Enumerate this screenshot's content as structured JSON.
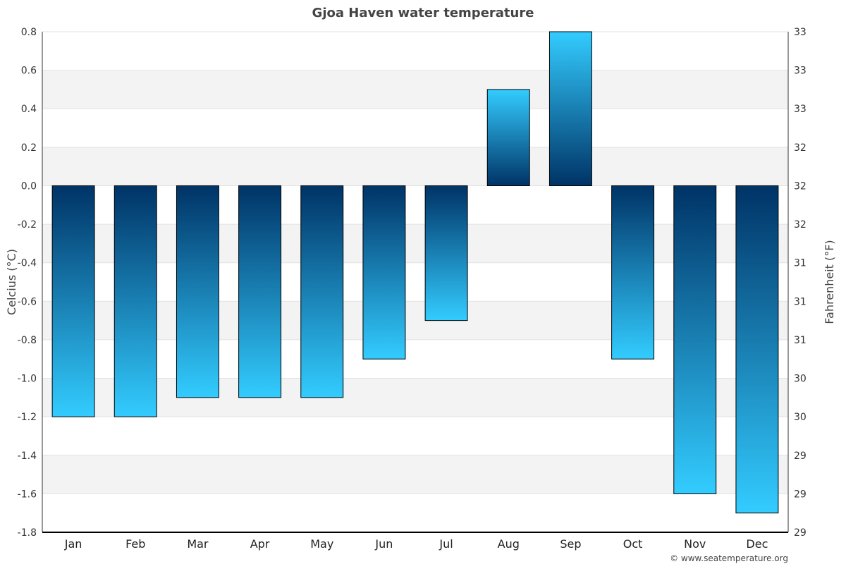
{
  "chart_data": {
    "type": "bar",
    "title": "Gjoa Haven water temperature",
    "categories": [
      "Jan",
      "Feb",
      "Mar",
      "Apr",
      "May",
      "Jun",
      "Jul",
      "Aug",
      "Sep",
      "Oct",
      "Nov",
      "Dec"
    ],
    "values": [
      -1.2,
      -1.2,
      -1.1,
      -1.1,
      -1.1,
      -0.9,
      -0.7,
      0.5,
      0.8,
      -0.9,
      -1.6,
      -1.7
    ],
    "ylabel": "Celcius (°C)",
    "y2label": "Fahrenheit (°F)",
    "ylim": [
      -1.8,
      0.8
    ],
    "yticks": [
      "0.8",
      "0.6",
      "0.4",
      "0.2",
      "0.0",
      "-0.2",
      "-0.4",
      "-0.6",
      "-0.8",
      "-1.0",
      "-1.2",
      "-1.4",
      "-1.6",
      "-1.8"
    ],
    "y2ticks": [
      "33",
      "33",
      "33",
      "32",
      "32",
      "32",
      "31",
      "31",
      "31",
      "30",
      "30",
      "29",
      "29",
      "29"
    ],
    "grid": true,
    "colors": {
      "bar_top": "#33CCFF",
      "bar_bottom": "#003366",
      "band": "#f3f3f3"
    }
  },
  "credit": "© www.seatemperature.org"
}
